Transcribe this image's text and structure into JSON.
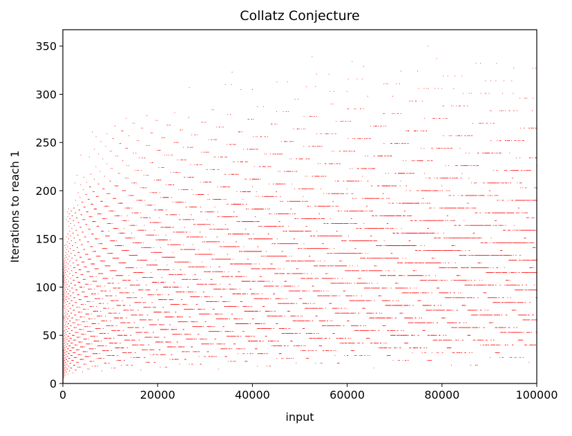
{
  "chart_data": {
    "type": "scatter",
    "title": "Collatz Conjecture",
    "xlabel": "input",
    "ylabel": "Iterations to reach 1",
    "xlim": [
      0,
      100000
    ],
    "ylim": [
      0,
      367
    ],
    "xticks": [
      0,
      20000,
      40000,
      60000,
      80000,
      100000
    ],
    "xtick_labels": [
      "0",
      "20000",
      "40000",
      "60000",
      "80000",
      "100000"
    ],
    "yticks": [
      0,
      50,
      100,
      150,
      200,
      250,
      300,
      350
    ],
    "ytick_labels": [
      "0",
      "50",
      "100",
      "150",
      "200",
      "250",
      "300",
      "350"
    ],
    "grid": false,
    "legend": "none",
    "series": [
      {
        "marker_color": "#ff0000",
        "x": {
          "start": 1,
          "end": 100000,
          "step": 1
        },
        "y_rule": "number of Collatz steps (n → n/2 if even, n → 3n+1 if odd) needed for input n to reach 1"
      }
    ]
  }
}
